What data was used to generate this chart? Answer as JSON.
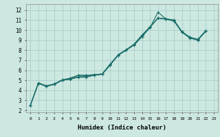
{
  "xlabel": "Humidex (Indice chaleur)",
  "background_color": "#cce8e0",
  "grid_color": "#aacccc",
  "line_color": "#1a6e6a",
  "xlim": [
    -0.5,
    23.5
  ],
  "ylim": [
    1.8,
    12.6
  ],
  "xticks": [
    0,
    1,
    2,
    3,
    4,
    5,
    6,
    7,
    8,
    9,
    10,
    11,
    12,
    13,
    14,
    15,
    16,
    17,
    18,
    19,
    20,
    21,
    22,
    23
  ],
  "yticks": [
    2,
    3,
    4,
    5,
    6,
    7,
    8,
    9,
    10,
    11,
    12
  ],
  "lines": [
    {
      "x": [
        0,
        1,
        2,
        3,
        4,
        5,
        6,
        7,
        8,
        9,
        10,
        11,
        12,
        13,
        14,
        15,
        16,
        17,
        18,
        19,
        20,
        21,
        22
      ],
      "y": [
        2.5,
        4.7,
        4.4,
        4.6,
        5.0,
        5.1,
        5.3,
        5.3,
        5.5,
        5.6,
        6.5,
        7.5,
        8.0,
        8.5,
        9.35,
        10.25,
        11.8,
        11.1,
        10.9,
        9.8,
        9.2,
        9.0,
        9.9
      ]
    },
    {
      "x": [
        0,
        1,
        2,
        3,
        4,
        5,
        6,
        7,
        8,
        9,
        10,
        11,
        12,
        13,
        14,
        15,
        16,
        17,
        18,
        19,
        20,
        21,
        22
      ],
      "y": [
        2.5,
        4.7,
        4.4,
        4.6,
        5.0,
        5.15,
        5.35,
        5.4,
        5.5,
        5.6,
        6.55,
        7.5,
        8.05,
        8.55,
        9.45,
        10.3,
        11.2,
        11.1,
        11.0,
        9.85,
        9.25,
        9.1,
        9.95
      ]
    },
    {
      "x": [
        0,
        1,
        2,
        3,
        4,
        5,
        6,
        7,
        8,
        9,
        10,
        11,
        12,
        13,
        14,
        15,
        16,
        17,
        18,
        19,
        20,
        21,
        22
      ],
      "y": [
        2.5,
        4.75,
        4.45,
        4.65,
        5.05,
        5.2,
        5.5,
        5.5,
        5.55,
        5.65,
        6.6,
        7.55,
        8.05,
        8.6,
        9.5,
        10.35,
        11.2,
        11.15,
        11.0,
        9.85,
        9.3,
        9.05,
        9.9
      ]
    },
    {
      "x": [
        0,
        1,
        2,
        3,
        4,
        5,
        6,
        7,
        8,
        9,
        10,
        11,
        12,
        13,
        14,
        15,
        16,
        17,
        18,
        19,
        20,
        21,
        22
      ],
      "y": [
        2.5,
        4.7,
        4.4,
        4.6,
        5.0,
        5.2,
        5.5,
        5.5,
        5.55,
        5.6,
        6.6,
        7.5,
        8.0,
        8.6,
        9.5,
        10.3,
        11.2,
        11.1,
        10.95,
        9.8,
        9.3,
        9.05,
        9.9
      ]
    }
  ]
}
